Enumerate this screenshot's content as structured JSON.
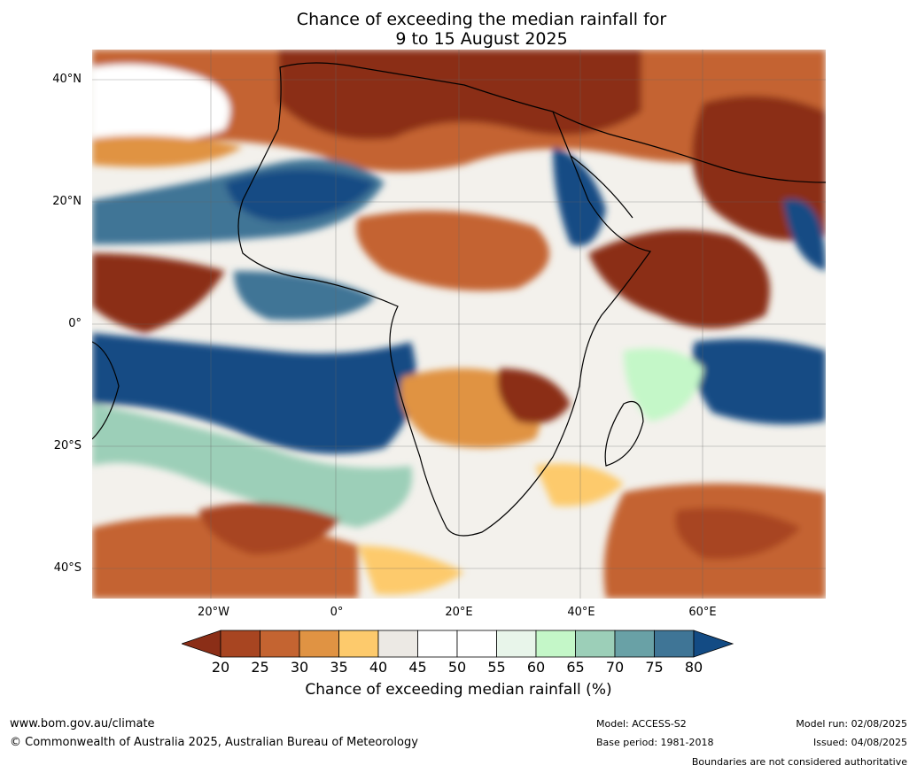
{
  "title": {
    "line1": "Chance of exceeding the median rainfall for",
    "line2": "9 to 15 August 2025"
  },
  "map": {
    "lat_labels": [
      "40°N",
      "20°N",
      "0°",
      "20°S",
      "40°S"
    ],
    "lon_labels": [
      "20°W",
      "0°",
      "20°E",
      "40°E",
      "60°E"
    ]
  },
  "colorbar": {
    "ticks": [
      "20",
      "25",
      "30",
      "35",
      "40",
      "45",
      "50",
      "55",
      "60",
      "65",
      "70",
      "75",
      "80"
    ],
    "colors": [
      "#8b2e17",
      "#a84521",
      "#c46431",
      "#e09343",
      "#fdca6c",
      "#ece9e4",
      "#ffffff",
      "#ffffff",
      "#e8f5ea",
      "#c4f7c8",
      "#9ccfb8",
      "#69a1a6",
      "#3f7596",
      "#134b84"
    ],
    "label": "Chance of exceeding median rainfall (%)"
  },
  "footer": {
    "website": "www.bom.gov.au/climate",
    "copyright": "© Commonwealth of Australia 2025, Australian Bureau of Meteorology",
    "model": "Model: ACCESS-S2",
    "base_period": "Base period: 1981-2018",
    "model_run": "Model run: 02/08/2025",
    "issued": "Issued: 04/08/2025",
    "disclaimer": "Boundaries are not considered authoritative"
  }
}
